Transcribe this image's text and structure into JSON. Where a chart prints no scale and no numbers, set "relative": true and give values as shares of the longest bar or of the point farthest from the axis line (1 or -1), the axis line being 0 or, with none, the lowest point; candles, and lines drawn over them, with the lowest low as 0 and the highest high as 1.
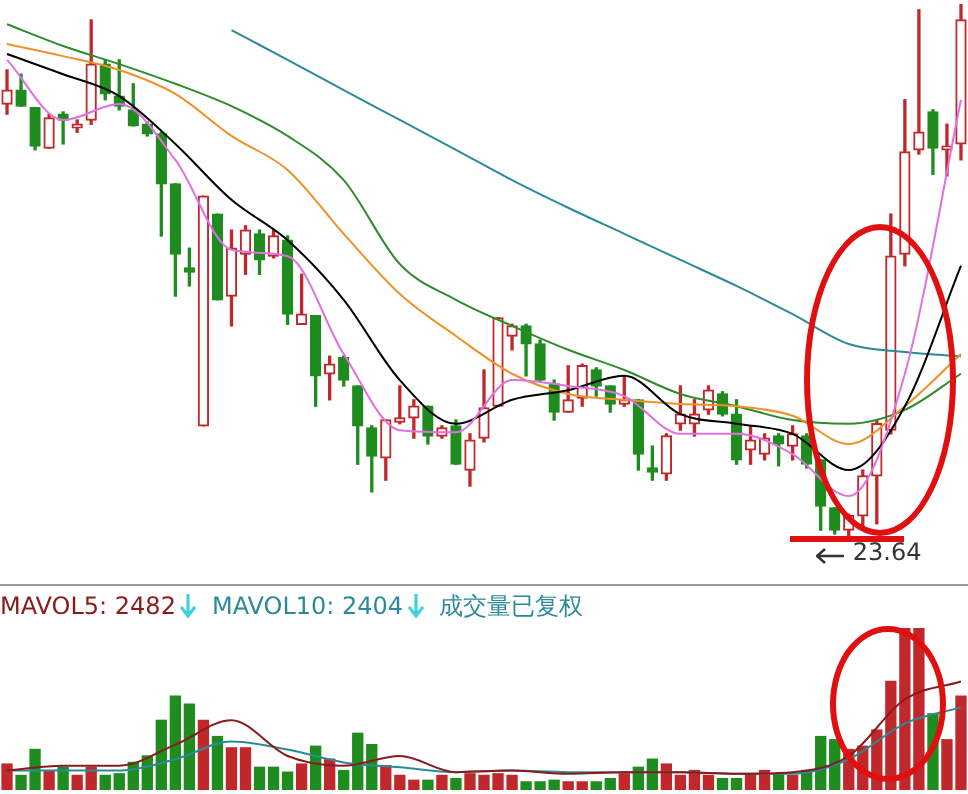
{
  "chart_data": [
    {
      "type": "candlestick",
      "relative": true,
      "categories": [
        null,
        null,
        null,
        null,
        null,
        null,
        null,
        null,
        null,
        null,
        null,
        null,
        null,
        null,
        null,
        null,
        null,
        null,
        null,
        null,
        null,
        null,
        null,
        null,
        null,
        null,
        null,
        null,
        null,
        null,
        null,
        null,
        null,
        null,
        null,
        null,
        null,
        null,
        null,
        null,
        null,
        null,
        null,
        null,
        null,
        null,
        null,
        null,
        null,
        null,
        null,
        null,
        null,
        null,
        null,
        null,
        null,
        null,
        null,
        null,
        null,
        null,
        null,
        null,
        null,
        null,
        null,
        null,
        null
      ],
      "ohlc": [
        [
          0.812,
          0.876,
          0.793,
          0.838
        ],
        [
          0.838,
          0.868,
          0.808,
          0.808
        ],
        [
          0.805,
          0.805,
          0.726,
          0.733
        ],
        [
          0.729,
          0.793,
          0.729,
          0.786
        ],
        [
          0.793,
          0.797,
          0.737,
          0.782
        ],
        [
          0.767,
          0.782,
          0.759,
          0.774
        ],
        [
          0.782,
          0.97,
          0.774,
          0.887
        ],
        [
          0.887,
          0.895,
          0.82,
          0.831
        ],
        [
          0.827,
          0.895,
          0.801,
          0.808
        ],
        [
          0.801,
          0.85,
          0.771,
          0.771
        ],
        [
          0.774,
          0.778,
          0.752,
          0.756
        ],
        [
          0.756,
          0.759,
          0.564,
          0.662
        ],
        [
          0.662,
          0.662,
          0.451,
          0.53
        ],
        [
          0.504,
          0.541,
          0.47,
          0.496
        ],
        [
          0.207,
          0.639,
          0.207,
          0.639
        ],
        [
          0.605,
          0.605,
          0.444,
          0.444
        ],
        [
          0.451,
          0.575,
          0.395,
          0.541
        ],
        [
          0.53,
          0.583,
          0.492,
          0.575
        ],
        [
          0.568,
          0.575,
          0.492,
          0.519
        ],
        [
          0.526,
          0.575,
          0.523,
          0.564
        ],
        [
          0.556,
          0.564,
          0.398,
          0.417
        ],
        [
          0.398,
          0.492,
          0.398,
          0.417
        ],
        [
          0.414,
          0.414,
          0.244,
          0.301
        ],
        [
          0.305,
          0.338,
          0.256,
          0.323
        ],
        [
          0.335,
          0.338,
          0.282,
          0.293
        ],
        [
          0.282,
          0.282,
          0.135,
          0.207
        ],
        [
          0.203,
          0.207,
          0.083,
          0.15
        ],
        [
          0.147,
          0.218,
          0.105,
          0.218
        ],
        [
          0.214,
          0.282,
          0.211,
          0.222
        ],
        [
          0.222,
          0.256,
          0.184,
          0.244
        ],
        [
          0.244,
          0.244,
          0.173,
          0.188
        ],
        [
          0.188,
          0.207,
          0.184,
          0.203
        ],
        [
          0.207,
          0.218,
          0.135,
          0.135
        ],
        [
          0.124,
          0.192,
          0.094,
          0.18
        ],
        [
          0.184,
          0.312,
          0.177,
          0.241
        ],
        [
          0.244,
          0.41,
          0.244,
          0.41
        ],
        [
          0.376,
          0.398,
          0.35,
          0.395
        ],
        [
          0.395,
          0.398,
          0.301,
          0.361
        ],
        [
          0.361,
          0.368,
          0.293,
          0.293
        ],
        [
          0.286,
          0.293,
          0.218,
          0.233
        ],
        [
          0.233,
          0.32,
          0.233,
          0.256
        ],
        [
          0.259,
          0.323,
          0.244,
          0.32
        ],
        [
          0.312,
          0.316,
          0.263,
          0.282
        ],
        [
          0.282,
          0.282,
          0.233,
          0.248
        ],
        [
          0.248,
          0.301,
          0.244,
          0.256
        ],
        [
          0.256,
          0.256,
          0.124,
          0.154
        ],
        [
          0.128,
          0.169,
          0.105,
          0.12
        ],
        [
          0.117,
          0.192,
          0.105,
          0.188
        ],
        [
          0.211,
          0.282,
          0.199,
          0.229
        ],
        [
          0.211,
          0.256,
          0.188,
          0.229
        ],
        [
          0.237,
          0.282,
          0.229,
          0.274
        ],
        [
          0.267,
          0.271,
          0.226,
          0.229
        ],
        [
          0.229,
          0.256,
          0.135,
          0.143
        ],
        [
          0.162,
          0.207,
          0.135,
          0.18
        ],
        [
          0.154,
          0.192,
          0.143,
          0.184
        ],
        [
          0.188,
          0.192,
          0.132,
          0.173
        ],
        [
          0.169,
          0.207,
          0.143,
          0.192
        ],
        [
          0.188,
          0.192,
          0.128,
          0.135
        ],
        [
          0.143,
          0.143,
          0.011,
          0.056
        ],
        [
          0.053,
          0.053,
          0.004,
          0.011
        ],
        [
          0.011,
          0.041,
          0,
          0.038
        ],
        [
          0.038,
          0.124,
          0.019,
          0.113
        ],
        [
          0.113,
          0.218,
          0.023,
          0.211
        ],
        [
          0.199,
          0.605,
          0.192,
          0.526
        ],
        [
          0.53,
          0.82,
          0.508,
          0.722
        ],
        [
          0.726,
          0.989,
          0.718,
          0.759
        ],
        [
          0.797,
          0.801,
          0.68,
          0.729
        ],
        [
          0.726,
          0.774,
          0.677,
          0.733
        ],
        [
          0.737,
          1,
          0.707,
          0.97
        ]
      ],
      "series": [
        {
          "type": "line",
          "color": "#e070e0",
          "values": [
            0.895,
            null,
            null,
            null,
            0.782,
            null,
            null,
            null,
            0.812,
            null,
            null,
            null,
            0.707,
            null,
            null,
            null,
            0.538,
            null,
            null,
            null,
            0.526,
            null,
            null,
            null,
            0.342,
            null,
            null,
            null,
            0.199,
            null,
            null,
            null,
            0.195,
            null,
            null,
            null,
            0.293,
            null,
            null,
            null,
            0.282,
            null,
            null,
            null,
            0.263,
            null,
            null,
            null,
            0.192,
            null,
            null,
            null,
            0.192,
            null,
            null,
            null,
            0.154,
            null,
            null,
            null,
            0.075,
            null,
            null,
            null,
            0.305,
            null,
            null,
            null,
            0.82
          ]
        },
        {
          "type": "line",
          "color": "#000000",
          "values": [
            0.906,
            null,
            null,
            null,
            0.868,
            null,
            null,
            null,
            0.827,
            null,
            null,
            null,
            0.737,
            null,
            null,
            null,
            0.632,
            null,
            null,
            null,
            0.556,
            null,
            null,
            null,
            0.444,
            null,
            null,
            null,
            0.293,
            null,
            null,
            null,
            0.211,
            null,
            null,
            null,
            0.256,
            null,
            null,
            null,
            0.274,
            null,
            null,
            null,
            0.301,
            null,
            null,
            null,
            0.229,
            null,
            null,
            null,
            0.211,
            null,
            null,
            null,
            0.192,
            null,
            null,
            null,
            0.124,
            null,
            null,
            null,
            0.244,
            null,
            null,
            null,
            0.508
          ]
        },
        {
          "type": "line",
          "color": "#f0902a",
          "values": [
            0.925,
            null,
            null,
            null,
            0.902,
            null,
            null,
            null,
            0.876,
            null,
            null,
            null,
            0.831,
            null,
            null,
            null,
            0.752,
            null,
            null,
            null,
            0.688,
            null,
            null,
            null,
            0.568,
            null,
            null,
            null,
            0.455,
            null,
            null,
            null,
            0.376,
            null,
            null,
            null,
            0.305,
            null,
            null,
            null,
            0.267,
            null,
            null,
            null,
            0.256,
            null,
            null,
            null,
            0.248,
            null,
            null,
            null,
            0.244,
            null,
            null,
            null,
            0.226,
            null,
            null,
            null,
            0.173,
            null,
            null,
            null,
            0.244,
            null,
            null,
            null,
            0.342
          ]
        },
        {
          "type": "line",
          "color": "#2e8b2e",
          "values": [
            0.962,
            null,
            null,
            null,
            0.921,
            null,
            null,
            null,
            0.887,
            null,
            null,
            null,
            0.85,
            null,
            null,
            null,
            0.808,
            null,
            null,
            null,
            0.752,
            null,
            null,
            null,
            0.669,
            null,
            null,
            null,
            0.511,
            null,
            null,
            null,
            0.444,
            null,
            null,
            null,
            0.395,
            null,
            null,
            null,
            0.35,
            null,
            null,
            null,
            0.312,
            null,
            null,
            null,
            0.267,
            null,
            null,
            null,
            0.244,
            null,
            null,
            null,
            0.218,
            null,
            null,
            null,
            0.211,
            null,
            null,
            null,
            0.237,
            null,
            null,
            null,
            0.305
          ]
        },
        {
          "type": "line",
          "color": "#2a8a9a",
          "values": [
            null,
            null,
            null,
            null,
            null,
            null,
            null,
            null,
            null,
            null,
            null,
            null,
            null,
            null,
            null,
            null,
            0.951,
            null,
            null,
            null,
            0.895,
            null,
            null,
            null,
            0.838,
            null,
            null,
            null,
            0.782,
            null,
            null,
            null,
            0.726,
            null,
            null,
            null,
            0.669,
            null,
            null,
            null,
            0.617,
            null,
            null,
            null,
            0.568,
            null,
            null,
            null,
            0.519,
            null,
            null,
            null,
            0.47,
            null,
            null,
            null,
            0.417,
            null,
            null,
            null,
            0.361,
            null,
            null,
            null,
            0.346,
            null,
            null,
            null,
            0.338
          ]
        }
      ],
      "annotations": [
        "23.64"
      ]
    },
    {
      "type": "bar",
      "relative": true,
      "legend": "top",
      "categories": [
        null,
        null,
        null,
        null,
        null,
        null,
        null,
        null,
        null,
        null,
        null,
        null,
        null,
        null,
        null,
        null,
        null,
        null,
        null,
        null,
        null,
        null,
        null,
        null,
        null,
        null,
        null,
        null,
        null,
        null,
        null,
        null,
        null,
        null,
        null,
        null,
        null,
        null,
        null,
        null,
        null,
        null,
        null,
        null,
        null,
        null,
        null,
        null,
        null,
        null,
        null,
        null,
        null,
        null,
        null,
        null,
        null,
        null,
        null,
        null,
        null,
        null,
        null,
        null,
        null,
        null,
        null,
        null,
        null
      ],
      "series": [
        {
          "type": "bar",
          "values": [
            0.16,
            0.09,
            0.25,
            0.12,
            0.14,
            0.09,
            0.14,
            0.09,
            0.1,
            0.17,
            0.21,
            0.43,
            0.58,
            0.53,
            0.43,
            0.33,
            0.26,
            0.26,
            0.14,
            0.14,
            0.11,
            0.16,
            0.27,
            0.19,
            0.12,
            0.35,
            0.28,
            0.15,
            0.09,
            0.06,
            0.06,
            0.09,
            0.07,
            0.1,
            0.09,
            0.1,
            0.09,
            0.05,
            0.05,
            0.06,
            0.05,
            0.05,
            0.05,
            0.07,
            0.1,
            0.14,
            0.19,
            0.16,
            0.09,
            0.12,
            0.09,
            0.07,
            0.07,
            0.1,
            0.12,
            0.1,
            0.09,
            0.12,
            0.33,
            0.31,
            0.25,
            0.27,
            0.37,
            0.67,
            1,
            1,
            0.47,
            0.31,
            0.58
          ],
          "colors": [
            "#c0282c",
            "#1e8c1e",
            "#1e8c1e",
            "#c0282c",
            "#1e8c1e",
            "#c0282c",
            "#c0282c",
            "#1e8c1e",
            "#1e8c1e",
            "#1e8c1e",
            "#1e8c1e",
            "#1e8c1e",
            "#1e8c1e",
            "#1e8c1e",
            "#c0282c",
            "#1e8c1e",
            "#c0282c",
            "#c0282c",
            "#1e8c1e",
            "#1e8c1e",
            "#1e8c1e",
            "#c0282c",
            "#1e8c1e",
            "#c0282c",
            "#1e8c1e",
            "#1e8c1e",
            "#1e8c1e",
            "#c0282c",
            "#c0282c",
            "#c0282c",
            "#1e8c1e",
            "#c0282c",
            "#1e8c1e",
            "#c0282c",
            "#c0282c",
            "#c0282c",
            "#c0282c",
            "#1e8c1e",
            "#1e8c1e",
            "#1e8c1e",
            "#c0282c",
            "#c0282c",
            "#1e8c1e",
            "#1e8c1e",
            "#c0282c",
            "#1e8c1e",
            "#1e8c1e",
            "#c0282c",
            "#c0282c",
            "#c0282c",
            "#c0282c",
            "#1e8c1e",
            "#1e8c1e",
            "#c0282c",
            "#c0282c",
            "#1e8c1e",
            "#c0282c",
            "#1e8c1e",
            "#1e8c1e",
            "#1e8c1e",
            "#c0282c",
            "#c0282c",
            "#c0282c",
            "#c0282c",
            "#c0282c",
            "#c0282c",
            "#1e8c1e",
            "#c0282c",
            "#c0282c"
          ]
        },
        {
          "type": "line",
          "name": "MAVOL5: 2482",
          "color": "#8b1a1a",
          "values": [
            0.12,
            null,
            null,
            null,
            0.15,
            null,
            null,
            null,
            0.15,
            null,
            null,
            null,
            0.28,
            null,
            null,
            null,
            0.43,
            null,
            null,
            null,
            0.21,
            null,
            null,
            null,
            0.15,
            null,
            null,
            null,
            0.21,
            null,
            null,
            null,
            0.11,
            null,
            null,
            null,
            0.12,
            null,
            null,
            null,
            0.1,
            null,
            null,
            null,
            0.11,
            null,
            null,
            null,
            0.11,
            null,
            null,
            null,
            0.1,
            null,
            null,
            null,
            0.11,
            null,
            null,
            null,
            0.21,
            null,
            null,
            null,
            0.56,
            null,
            null,
            null,
            0.67
          ]
        },
        {
          "type": "line",
          "name": "MAVOL10: 2404",
          "color": "#2a8a9a",
          "values": [
            0.12,
            null,
            null,
            null,
            0.12,
            null,
            null,
            null,
            0.12,
            null,
            null,
            null,
            0.19,
            null,
            null,
            null,
            0.3,
            null,
            null,
            null,
            0.25,
            null,
            null,
            null,
            0.17,
            null,
            null,
            null,
            0.14,
            null,
            null,
            null,
            0.11,
            null,
            null,
            null,
            0.12,
            null,
            null,
            null,
            0.11,
            null,
            null,
            null,
            0.11,
            null,
            null,
            null,
            0.11,
            null,
            null,
            null,
            0.1,
            null,
            null,
            null,
            0.1,
            null,
            null,
            null,
            0.19,
            null,
            null,
            null,
            0.41,
            null,
            null,
            null,
            0.51
          ]
        }
      ],
      "annotations": [
        "成交量已复权"
      ]
    }
  ]
}
